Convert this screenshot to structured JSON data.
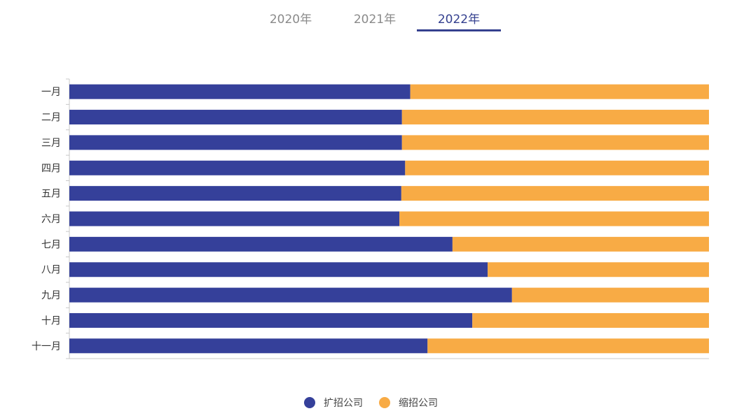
{
  "tabs": [
    {
      "label": "2020年",
      "active": false
    },
    {
      "label": "2021年",
      "active": false
    },
    {
      "label": "2022年",
      "active": true
    }
  ],
  "colors": {
    "tab_active": "#34408f",
    "tab_inactive": "#8a8a8a",
    "expand": "#35409a",
    "shrink": "#f8ab45",
    "axis": "#c8c8c8"
  },
  "legend": [
    {
      "label": "扩招公司",
      "color": "#35409a"
    },
    {
      "label": "缩招公司",
      "color": "#f8ab45"
    }
  ],
  "chart_data": {
    "type": "bar",
    "orientation": "horizontal",
    "stacked": true,
    "categories": [
      "一月",
      "二月",
      "三月",
      "四月",
      "五月",
      "六月",
      "七月",
      "八月",
      "九月",
      "十月",
      "十一月"
    ],
    "series": [
      {
        "name": "扩招公司",
        "values": [
          53.3,
          52.0,
          52.0,
          52.5,
          51.9,
          51.6,
          59.9,
          65.4,
          69.2,
          63.0,
          56.0
        ]
      },
      {
        "name": "缩招公司",
        "values": [
          46.7,
          48.0,
          48.0,
          47.5,
          48.1,
          48.4,
          40.1,
          34.6,
          30.8,
          37.0,
          44.0
        ]
      }
    ],
    "xlim": [
      0,
      100
    ],
    "grid": false,
    "legend_position": "bottom"
  }
}
